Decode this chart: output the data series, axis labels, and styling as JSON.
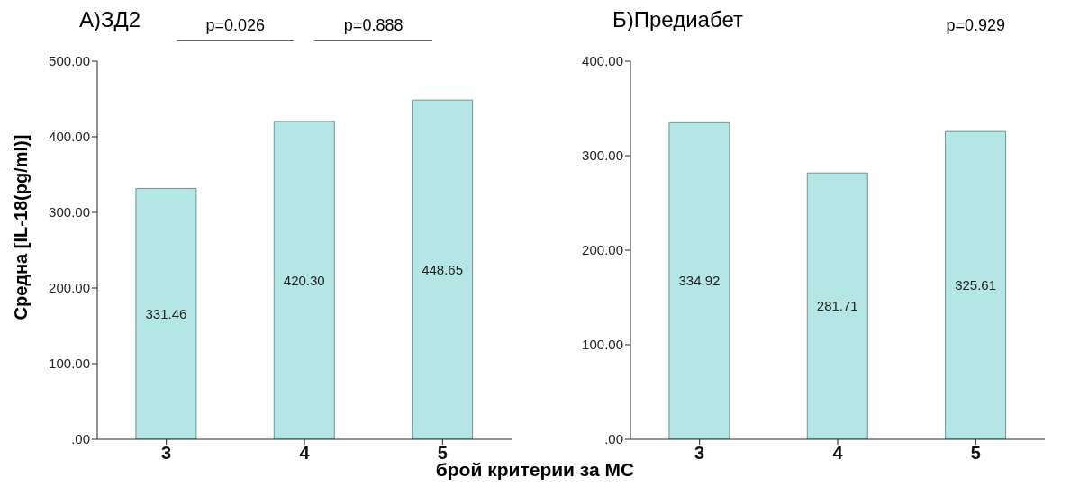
{
  "chart_data": [
    {
      "type": "bar",
      "title": "А)ЗД2",
      "ylabel": "Средна [IL-18(pg/ml)]",
      "xlabel": "брой критерии за МС",
      "categories": [
        "3",
        "4",
        "5"
      ],
      "values": [
        331.46,
        420.3,
        448.65
      ],
      "value_labels": [
        "331.46",
        "420.30",
        "448.65"
      ],
      "color": "#b5e6e6",
      "ylim": [
        0,
        500
      ],
      "yticks": [
        {
          "value": 0,
          "label": ".00"
        },
        {
          "value": 100,
          "label": "100.00"
        },
        {
          "value": 200,
          "label": "200.00"
        },
        {
          "value": 300,
          "label": "300.00"
        },
        {
          "value": 400,
          "label": "400.00"
        },
        {
          "value": 500,
          "label": "500.00"
        }
      ],
      "grid": false,
      "annotations": [
        "p=0.026",
        "p=0.888"
      ]
    },
    {
      "type": "bar",
      "title": "Б)Предиабет",
      "categories": [
        "3",
        "4",
        "5"
      ],
      "values": [
        334.92,
        281.71,
        325.61
      ],
      "value_labels": [
        "334.92",
        "281.71",
        "325.61"
      ],
      "color": "#b5e6e6",
      "ylim": [
        0,
        400
      ],
      "yticks": [
        {
          "value": 0,
          "label": ".00"
        },
        {
          "value": 100,
          "label": "100.00"
        },
        {
          "value": 200,
          "label": "200.00"
        },
        {
          "value": 300,
          "label": "300.00"
        },
        {
          "value": 400,
          "label": "400.00"
        }
      ],
      "grid": false,
      "annotations": [
        "p=0.929"
      ]
    }
  ]
}
